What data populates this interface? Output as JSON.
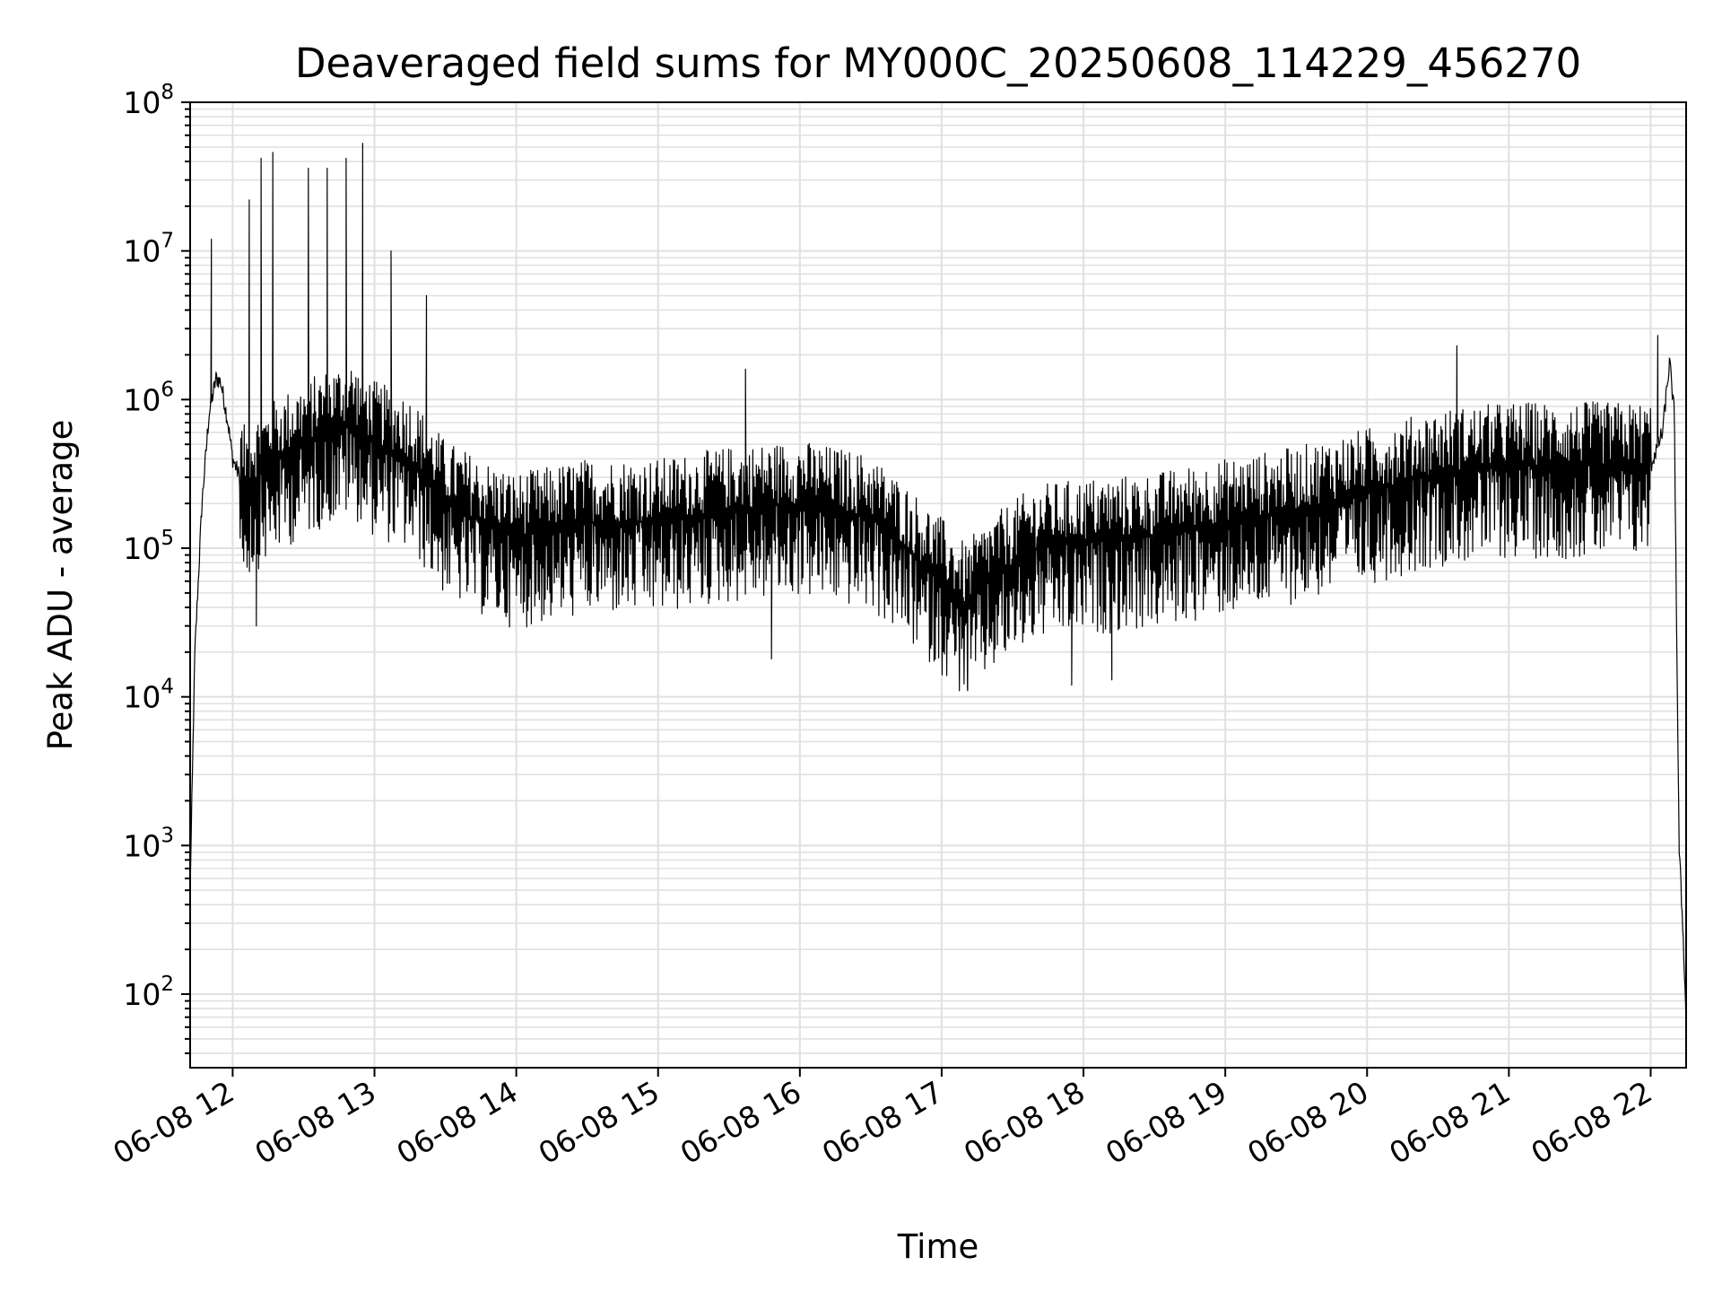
{
  "chart_data": {
    "type": "line",
    "title": "Deaveraged field sums for MY000C_20250608_114229_456270",
    "xlabel": "Time",
    "ylabel": "Peak ADU - average",
    "x_scale": "time",
    "y_scale": "log",
    "xlim": [
      "2025-06-08 11:42",
      "2025-06-08 22:15"
    ],
    "ylim": [
      32,
      100000000
    ],
    "x_ticks": [
      "06-08 12",
      "06-08 13",
      "06-08 14",
      "06-08 15",
      "06-08 16",
      "06-08 17",
      "06-08 18",
      "06-08 19",
      "06-08 20",
      "06-08 21",
      "06-08 22"
    ],
    "y_ticks": [
      {
        "base": "10",
        "exp": "2"
      },
      {
        "base": "10",
        "exp": "3"
      },
      {
        "base": "10",
        "exp": "4"
      },
      {
        "base": "10",
        "exp": "5"
      },
      {
        "base": "10",
        "exp": "6"
      },
      {
        "base": "10",
        "exp": "7"
      },
      {
        "base": "10",
        "exp": "8"
      }
    ],
    "grid": true,
    "line_color": "#000000",
    "grid_color": "#e0e0e0",
    "series": [
      {
        "x": [
          "2025-06-08 11:42",
          "2025-06-08 11:44",
          "2025-06-08 11:47",
          "2025-06-08 11:50",
          "2025-06-08 11:53",
          "2025-06-08 11:55",
          "2025-06-08 11:58",
          "2025-06-08 12:00",
          "2025-06-08 12:03",
          "2025-06-08 12:05",
          "2025-06-08 12:10",
          "2025-06-08 12:20",
          "2025-06-08 12:30",
          "2025-06-08 12:40",
          "2025-06-08 12:50",
          "2025-06-08 13:00",
          "2025-06-08 13:15",
          "2025-06-08 13:30",
          "2025-06-08 13:45",
          "2025-06-08 14:00",
          "2025-06-08 14:30",
          "2025-06-08 15:00",
          "2025-06-08 15:30",
          "2025-06-08 16:00",
          "2025-06-08 16:30",
          "2025-06-08 16:45",
          "2025-06-08 17:00",
          "2025-06-08 17:10",
          "2025-06-08 17:20",
          "2025-06-08 17:40",
          "2025-06-08 18:00",
          "2025-06-08 18:30",
          "2025-06-08 19:00",
          "2025-06-08 19:30",
          "2025-06-08 20:00",
          "2025-06-08 20:30",
          "2025-06-08 21:00",
          "2025-06-08 21:30",
          "2025-06-08 22:00",
          "2025-06-08 22:05",
          "2025-06-08 22:08",
          "2025-06-08 22:10",
          "2025-06-08 22:12",
          "2025-06-08 22:14",
          "2025-06-08 22:15"
        ],
        "y": [
          500,
          20000,
          200000,
          800000,
          1400000,
          1300000,
          700000,
          400000,
          300000,
          250000,
          300000,
          400000,
          500000,
          600000,
          700000,
          500000,
          400000,
          200000,
          150000,
          120000,
          150000,
          150000,
          180000,
          200000,
          160000,
          100000,
          60000,
          40000,
          60000,
          100000,
          110000,
          120000,
          150000,
          180000,
          240000,
          320000,
          360000,
          360000,
          360000,
          600000,
          1800000,
          800000,
          1000,
          200,
          60
        ],
        "noise_band": {
          "low_factor": 0.2,
          "high_factor": 3.0
        },
        "spikes": [
          {
            "x": "2025-06-08 11:51",
            "y": 12000000
          },
          {
            "x": "2025-06-08 12:07",
            "y": 22000000
          },
          {
            "x": "2025-06-08 12:12",
            "y": 42000000
          },
          {
            "x": "2025-06-08 12:17",
            "y": 46000000
          },
          {
            "x": "2025-06-08 12:32",
            "y": 36000000
          },
          {
            "x": "2025-06-08 12:40",
            "y": 36000000
          },
          {
            "x": "2025-06-08 12:48",
            "y": 42000000
          },
          {
            "x": "2025-06-08 12:55",
            "y": 53000000
          },
          {
            "x": "2025-06-08 13:07",
            "y": 10000000
          },
          {
            "x": "2025-06-08 13:22",
            "y": 5000000
          },
          {
            "x": "2025-06-08 15:37",
            "y": 1600000
          },
          {
            "x": "2025-06-08 20:38",
            "y": 2300000
          },
          {
            "x": "2025-06-08 22:03",
            "y": 2700000
          }
        ],
        "dips": [
          {
            "x": "2025-06-08 12:10",
            "y": 30000
          },
          {
            "x": "2025-06-08 15:48",
            "y": 18000
          },
          {
            "x": "2025-06-08 17:11",
            "y": 11000
          },
          {
            "x": "2025-06-08 17:55",
            "y": 12000
          },
          {
            "x": "2025-06-08 18:12",
            "y": 13000
          }
        ]
      }
    ]
  }
}
